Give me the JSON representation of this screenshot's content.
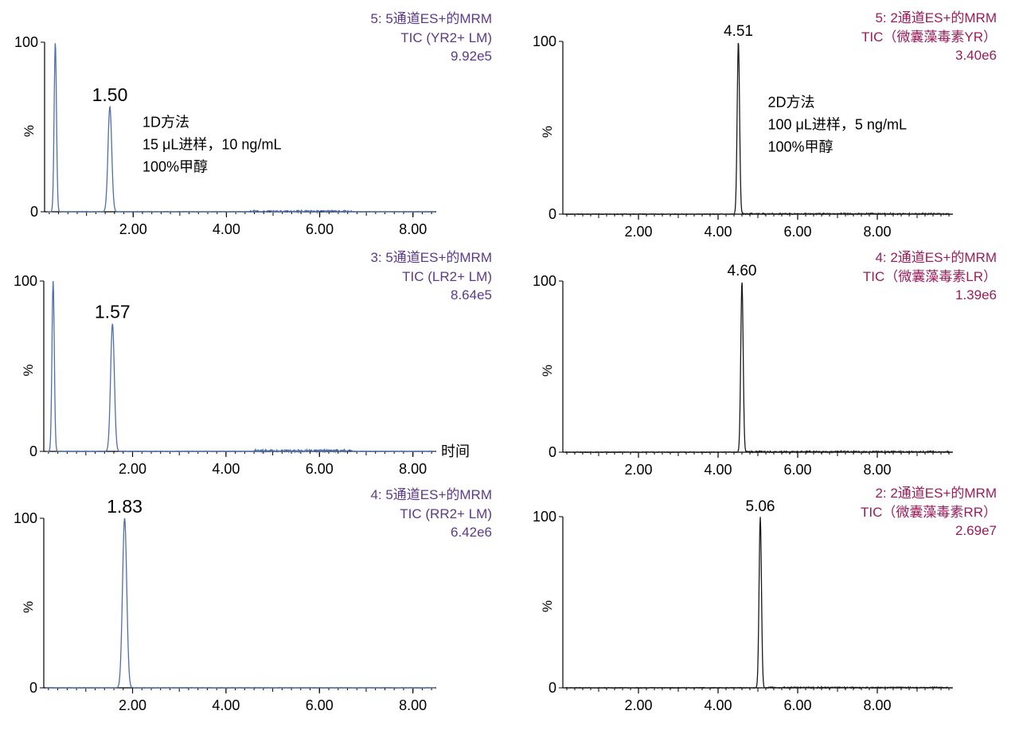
{
  "colors": {
    "blue": "#4f6fa8",
    "black": "#1a1a1a",
    "purple": "#5b3a8c",
    "magenta": "#9b1c5a",
    "axis": "#000000"
  },
  "chart_data": [
    {
      "type": "line",
      "x_range": [
        0.1,
        8.5
      ],
      "ylim": [
        0,
        100
      ],
      "yticks": [
        0,
        100
      ],
      "ylabel": "%",
      "x_ticks": [
        2.0,
        4.0,
        6.0,
        8.0
      ],
      "x_tick_labels": [
        "2.00",
        "4.00",
        "6.00",
        "8.00"
      ],
      "header": [
        "5: 5通道ES+的MRM",
        "TIC (YR2+ LM)",
        "9.92e5"
      ],
      "color": "blue",
      "header_color": "purple",
      "xlabel": "",
      "peaks": [
        {
          "x": 0.33,
          "y": 100,
          "w": 0.025
        },
        {
          "x": 1.5,
          "y": 62,
          "w": 0.04
        }
      ],
      "peak_label": {
        "x": 1.5,
        "text": "1.50"
      },
      "noise": {
        "from": 4.5,
        "to": 6.7,
        "amp": 0.9
      },
      "annotation": [
        "1D方法",
        "15 μL进样，10 ng/mL",
        "100%甲醇"
      ],
      "annotation_pos": {
        "x": 2.2,
        "y": 50
      }
    },
    {
      "type": "line",
      "x_range": [
        0.1,
        9.9
      ],
      "ylim": [
        0,
        100
      ],
      "yticks": [
        0,
        100
      ],
      "ylabel": "%",
      "x_ticks": [
        2.0,
        4.0,
        6.0,
        8.0
      ],
      "x_tick_labels": [
        "2.00",
        "4.00",
        "6.00",
        "8.00"
      ],
      "header": [
        "5: 2通道ES+的MRM",
        "TIC（微囊藻毒素YR）",
        "3.40e6"
      ],
      "color": "black",
      "header_color": "magenta",
      "xlabel": "",
      "peaks": [
        {
          "x": 4.51,
          "y": 100,
          "w": 0.03
        }
      ],
      "peak_label": {
        "x": 4.51,
        "text": "4.51"
      },
      "noise": {
        "from": 4.6,
        "to": 9.8,
        "amp": 0.6
      },
      "annotation": [
        "2D方法",
        "100 μL进样，5 ng/mL",
        "100%甲醇"
      ],
      "annotation_pos": {
        "x": 5.25,
        "y": 62
      }
    },
    {
      "type": "line",
      "x_range": [
        0.1,
        8.5
      ],
      "ylim": [
        0,
        100
      ],
      "yticks": [
        0,
        100
      ],
      "ylabel": "%",
      "x_ticks": [
        2.0,
        4.0,
        6.0,
        8.0
      ],
      "x_tick_labels": [
        "2.00",
        "4.00",
        "6.00",
        "8.00"
      ],
      "header": [
        "3: 5通道ES+的MRM",
        "TIC (LR2+ LM)",
        "8.64e5"
      ],
      "color": "blue",
      "header_color": "purple",
      "xlabel": "时间",
      "peaks": [
        {
          "x": 0.3,
          "y": 100,
          "w": 0.025
        },
        {
          "x": 1.57,
          "y": 75,
          "w": 0.04
        }
      ],
      "peak_label": {
        "x": 1.57,
        "text": "1.57"
      },
      "noise": {
        "from": 4.6,
        "to": 6.7,
        "amp": 1.2
      }
    },
    {
      "type": "line",
      "x_range": [
        0.1,
        9.9
      ],
      "ylim": [
        0,
        100
      ],
      "yticks": [
        0,
        100
      ],
      "ylabel": "%",
      "x_ticks": [
        2.0,
        4.0,
        6.0,
        8.0
      ],
      "x_tick_labels": [
        "2.00",
        "4.00",
        "6.00",
        "8.00"
      ],
      "header": [
        "4: 2通道ES+的MRM",
        "TIC（微囊藻毒素LR）",
        "1.39e6"
      ],
      "color": "black",
      "header_color": "magenta",
      "xlabel": "",
      "peaks": [
        {
          "x": 4.6,
          "y": 100,
          "w": 0.03
        }
      ],
      "peak_label": {
        "x": 4.6,
        "text": "4.60"
      },
      "noise": {
        "from": 4.7,
        "to": 9.8,
        "amp": 0.7
      }
    },
    {
      "type": "line",
      "x_range": [
        0.1,
        8.5
      ],
      "ylim": [
        0,
        100
      ],
      "yticks": [
        0,
        100
      ],
      "ylabel": "%",
      "x_ticks": [
        2.0,
        4.0,
        6.0,
        8.0
      ],
      "x_tick_labels": [
        "2.00",
        "4.00",
        "6.00",
        "8.00"
      ],
      "header": [
        "4: 5通道ES+的MRM",
        "TIC (RR2+ LM)",
        "6.42e6"
      ],
      "color": "blue",
      "header_color": "purple",
      "xlabel": "",
      "peaks": [
        {
          "x": 1.83,
          "y": 100,
          "w": 0.045
        }
      ],
      "peak_label": {
        "x": 1.83,
        "text": "1.83"
      },
      "noise": {
        "from": 0,
        "to": 0,
        "amp": 0
      }
    },
    {
      "type": "line",
      "x_range": [
        0.1,
        9.9
      ],
      "ylim": [
        0,
        100
      ],
      "yticks": [
        0,
        100
      ],
      "ylabel": "%",
      "x_ticks": [
        2.0,
        4.0,
        6.0,
        8.0
      ],
      "x_tick_labels": [
        "2.00",
        "4.00",
        "6.00",
        "8.00"
      ],
      "header": [
        "2: 2通道ES+的MRM",
        "TIC（微囊藻毒素RR）",
        "2.69e7"
      ],
      "color": "black",
      "header_color": "magenta",
      "xlabel": "",
      "peaks": [
        {
          "x": 5.06,
          "y": 100,
          "w": 0.03
        }
      ],
      "peak_label": {
        "x": 5.06,
        "text": "5.06"
      },
      "noise": {
        "from": 5.2,
        "to": 9.8,
        "amp": 0.5
      }
    }
  ]
}
